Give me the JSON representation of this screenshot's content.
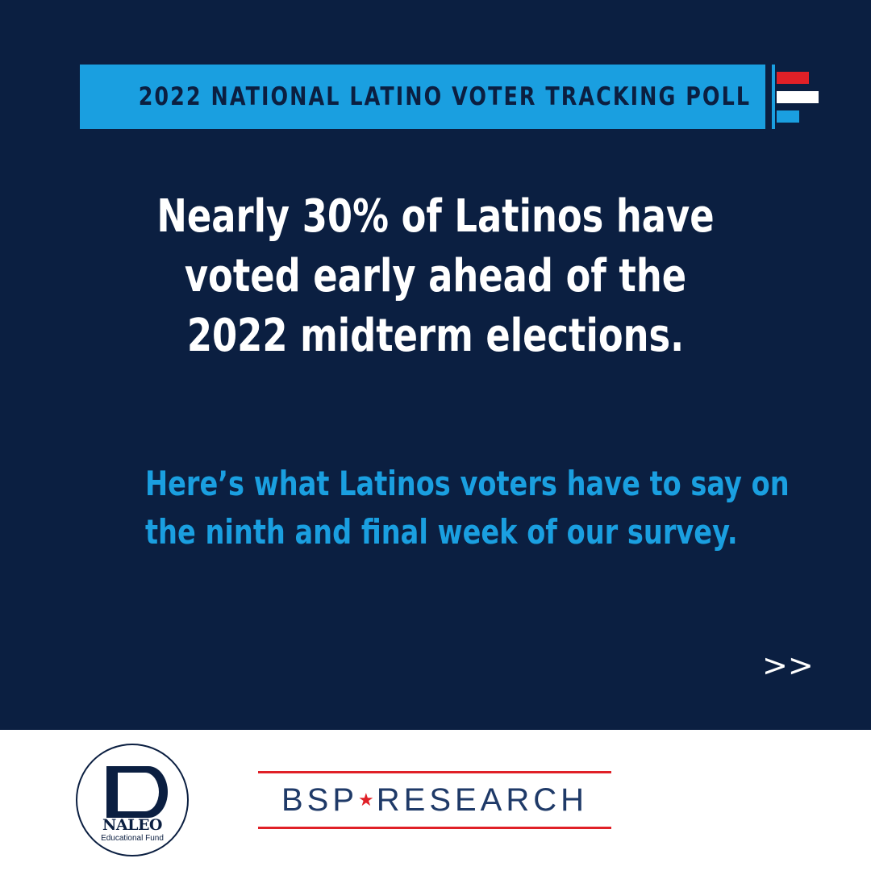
{
  "banner": {
    "title": "2022 NATIONAL LATINO VOTER TRACKING POLL"
  },
  "headline": {
    "lines": [
      "Nearly 30% of Latinos have",
      "voted early ahead of the",
      "2022 midterm elections."
    ]
  },
  "subheadline": {
    "lines": [
      "Here’s what Latinos voters have to say on",
      "the ninth and final week of our survey."
    ]
  },
  "next": {
    "label": ">>"
  },
  "logos": {
    "naleo": {
      "name": "NALEO",
      "subtitle": "Educational Fund"
    },
    "bsp": {
      "left": "BSP",
      "star": "★",
      "right": "RESEARCH"
    }
  },
  "colors": {
    "navy": "#0b1f41",
    "accent_blue": "#1a9fe0",
    "red": "#e02027",
    "white": "#ffffff"
  }
}
